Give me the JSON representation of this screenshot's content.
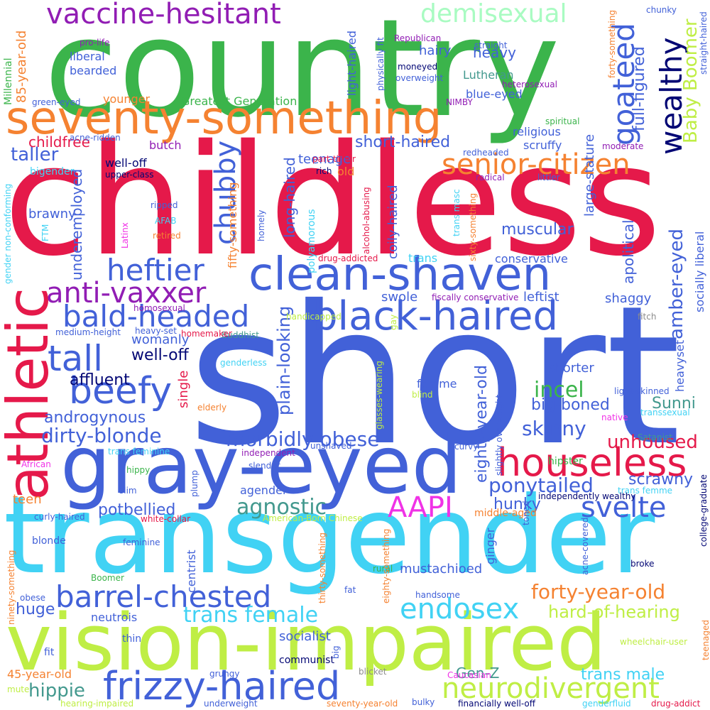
{
  "colors": {
    "red": "#e5194a",
    "green": "#3bb44b",
    "blue": "#4261d8",
    "cyan": "#41d2f4",
    "lime": "#bfee45",
    "orange": "#f58231",
    "purple": "#911db4",
    "navy": "#020674",
    "teal": "#43998e",
    "mint": "#a9fbc2",
    "magenta": "#f032e6",
    "grey": "#8c8c8c"
  },
  "words": [
    {
      "text": "short",
      "color": "blue"
    },
    {
      "text": "childless",
      "color": "red"
    },
    {
      "text": "country",
      "color": "green"
    },
    {
      "text": "transgender",
      "color": "cyan"
    },
    {
      "text": "vision-impaired",
      "color": "lime"
    },
    {
      "text": "gray-eyed",
      "color": "blue"
    },
    {
      "text": "seventy-something",
      "color": "orange"
    },
    {
      "text": "athletic",
      "color": "red"
    },
    {
      "text": "clean-shaven",
      "color": "blue"
    },
    {
      "text": "black-haired",
      "color": "blue"
    },
    {
      "text": "houseless",
      "color": "red"
    },
    {
      "text": "frizzy-haired",
      "color": "blue"
    },
    {
      "text": "barrel-chested",
      "color": "blue"
    },
    {
      "text": "vaccine-hesitant",
      "color": "purple"
    },
    {
      "text": "beefy",
      "color": "blue"
    },
    {
      "text": "tall",
      "color": "blue"
    },
    {
      "text": "heftier",
      "color": "blue"
    },
    {
      "text": "bald-headed",
      "color": "blue"
    },
    {
      "text": "anti-vaxxer",
      "color": "purple"
    },
    {
      "text": "neurodivergent",
      "color": "lime"
    },
    {
      "text": "senior-citizen",
      "color": "orange"
    },
    {
      "text": "endosex",
      "color": "cyan"
    },
    {
      "text": "svelte",
      "color": "blue"
    },
    {
      "text": "AAPI",
      "color": "magenta"
    },
    {
      "text": "goateed",
      "color": "blue"
    },
    {
      "text": "wealthy",
      "color": "navy"
    },
    {
      "text": "morbidly obese",
      "color": "blue"
    },
    {
      "text": "dirty-blonde",
      "color": "blue"
    },
    {
      "text": "demisexual",
      "color": "mint"
    },
    {
      "text": "chubby",
      "color": "blue"
    },
    {
      "text": "forty-year-old",
      "color": "orange"
    },
    {
      "text": "trans female",
      "color": "cyan"
    },
    {
      "text": "Baby Boomer",
      "color": "lime"
    },
    {
      "text": "amber-eyed",
      "color": "blue"
    },
    {
      "text": "agnostic",
      "color": "teal"
    },
    {
      "text": "incel",
      "color": "green"
    },
    {
      "text": "ponytailed",
      "color": "blue"
    },
    {
      "text": "skinny",
      "color": "blue"
    },
    {
      "text": "hippie",
      "color": "teal"
    },
    {
      "text": "unhoused",
      "color": "red"
    },
    {
      "text": "full-figured",
      "color": "blue"
    },
    {
      "text": "plain-looking",
      "color": "blue"
    },
    {
      "text": "eighty-year-old",
      "color": "blue"
    },
    {
      "text": "long-haired",
      "color": "blue"
    },
    {
      "text": "hard-of-hearing",
      "color": "lime"
    },
    {
      "text": "big-boned",
      "color": "blue"
    },
    {
      "text": "muscular",
      "color": "blue"
    },
    {
      "text": "well-off",
      "color": "navy"
    },
    {
      "text": "potbellied",
      "color": "blue"
    },
    {
      "text": "taller",
      "color": "blue"
    },
    {
      "text": "affluent",
      "color": "navy"
    },
    {
      "text": "androgynous",
      "color": "blue"
    },
    {
      "text": "apolitical",
      "color": "blue"
    },
    {
      "text": "short-haired",
      "color": "blue"
    },
    {
      "text": "underemployed",
      "color": "blue"
    },
    {
      "text": "scrawny",
      "color": "blue"
    },
    {
      "text": "hunky",
      "color": "blue"
    },
    {
      "text": "huge",
      "color": "blue"
    },
    {
      "text": "trans male",
      "color": "cyan"
    },
    {
      "text": "Gen-Z",
      "color": "teal"
    },
    {
      "text": "Sunni",
      "color": "teal"
    },
    {
      "text": "large-stature",
      "color": "blue"
    },
    {
      "text": "socially liberal",
      "color": "blue"
    },
    {
      "text": "heavyset",
      "color": "blue"
    },
    {
      "text": "shaggy",
      "color": "blue"
    },
    {
      "text": "shorter",
      "color": "blue"
    },
    {
      "text": "swole",
      "color": "blue"
    },
    {
      "text": "leftist",
      "color": "blue"
    },
    {
      "text": "teenage",
      "color": "blue"
    },
    {
      "text": "coily-haired",
      "color": "blue"
    },
    {
      "text": "fifty-something",
      "color": "orange"
    },
    {
      "text": "childfree",
      "color": "red"
    },
    {
      "text": "brawny",
      "color": "blue"
    },
    {
      "text": "single",
      "color": "red"
    },
    {
      "text": "womanly",
      "color": "blue"
    },
    {
      "text": "conservative",
      "color": "blue"
    },
    {
      "text": "mustachioed",
      "color": "blue"
    },
    {
      "text": "socialist",
      "color": "blue"
    },
    {
      "text": "Greatest Generation",
      "color": "green"
    },
    {
      "text": "blue-eyed",
      "color": "blue"
    },
    {
      "text": "hairy",
      "color": "blue"
    },
    {
      "text": "religious",
      "color": "blue"
    },
    {
      "text": "scruffy",
      "color": "blue"
    },
    {
      "text": "heavy",
      "color": "blue"
    },
    {
      "text": "Lutheran",
      "color": "teal"
    },
    {
      "text": "light-haired",
      "color": "blue"
    },
    {
      "text": "bearded",
      "color": "blue"
    },
    {
      "text": "liberal",
      "color": "blue"
    },
    {
      "text": "85-year-old",
      "color": "orange"
    },
    {
      "text": "younger",
      "color": "orange"
    },
    {
      "text": "butch",
      "color": "purple"
    },
    {
      "text": "teen",
      "color": "orange"
    },
    {
      "text": "agender",
      "color": "blue"
    },
    {
      "text": "neutrois",
      "color": "blue"
    },
    {
      "text": "ginger",
      "color": "blue"
    },
    {
      "text": "femme",
      "color": "blue"
    },
    {
      "text": "trans",
      "color": "cyan"
    },
    {
      "text": "old",
      "color": "orange"
    },
    {
      "text": "centrist",
      "color": "blue"
    },
    {
      "text": "Millennial",
      "color": "green"
    },
    {
      "text": "45-year-old",
      "color": "orange"
    },
    {
      "text": "fit",
      "color": "blue"
    },
    {
      "text": "thin",
      "color": "blue"
    },
    {
      "text": "communist",
      "color": "navy"
    },
    {
      "text": "bigender",
      "color": "cyan"
    },
    {
      "text": "polyamorous",
      "color": "cyan"
    },
    {
      "text": "well-off",
      "color": "navy"
    },
    {
      "text": "upper-class",
      "color": "navy"
    },
    {
      "text": "rich",
      "color": "navy"
    },
    {
      "text": "part-timer",
      "color": "red"
    },
    {
      "text": "drug-addicted",
      "color": "red"
    },
    {
      "text": "alcohol-abusing",
      "color": "red"
    },
    {
      "text": "sixty-something",
      "color": "orange"
    },
    {
      "text": "trans masc",
      "color": "cyan"
    },
    {
      "text": "radical",
      "color": "purple"
    },
    {
      "text": "littler",
      "color": "blue"
    },
    {
      "text": "redheaded",
      "color": "blue"
    },
    {
      "text": "moderate",
      "color": "purple"
    },
    {
      "text": "spiritual",
      "color": "green"
    },
    {
      "text": "NIMBY",
      "color": "purple"
    },
    {
      "text": "heterosexual",
      "color": "purple"
    },
    {
      "text": "overweight",
      "color": "blue"
    },
    {
      "text": "moneyed",
      "color": "navy"
    },
    {
      "text": "Republican",
      "color": "purple"
    },
    {
      "text": "pro-life",
      "color": "purple"
    },
    {
      "text": "physically fit",
      "color": "blue"
    },
    {
      "text": "straight",
      "color": "blue"
    },
    {
      "text": "forty-something",
      "color": "orange"
    },
    {
      "text": "chunky",
      "color": "blue"
    },
    {
      "text": "straight-haired",
      "color": "blue"
    },
    {
      "text": "green-eyed",
      "color": "blue"
    },
    {
      "text": "acne-ridden",
      "color": "blue"
    },
    {
      "text": "gender non-conforming",
      "color": "cyan"
    },
    {
      "text": "FTM",
      "color": "cyan"
    },
    {
      "text": "AFAB",
      "color": "cyan"
    },
    {
      "text": "Latinx",
      "color": "magenta"
    },
    {
      "text": "homely",
      "color": "blue"
    },
    {
      "text": "ripped",
      "color": "blue"
    },
    {
      "text": "retired",
      "color": "orange"
    },
    {
      "text": "medium-height",
      "color": "blue"
    },
    {
      "text": "heavy-set",
      "color": "blue"
    },
    {
      "text": "homosexual",
      "color": "purple"
    },
    {
      "text": "genderless",
      "color": "cyan"
    },
    {
      "text": "Buddhist",
      "color": "teal"
    },
    {
      "text": "homemaker",
      "color": "red"
    },
    {
      "text": "handicapped",
      "color": "lime"
    },
    {
      "text": "gay",
      "color": "lime"
    },
    {
      "text": "fiscally conservative",
      "color": "purple"
    },
    {
      "text": "fitch",
      "color": "grey"
    },
    {
      "text": "light-skinned",
      "color": "blue"
    },
    {
      "text": "transsexual",
      "color": "cyan"
    },
    {
      "text": "native",
      "color": "magenta"
    },
    {
      "text": "glasses-wearing",
      "color": "lime"
    },
    {
      "text": "blind",
      "color": "lime"
    },
    {
      "text": "slightly overweight",
      "color": "blue"
    },
    {
      "text": "elderly",
      "color": "orange"
    },
    {
      "text": "unshaved",
      "color": "blue"
    },
    {
      "text": "independent",
      "color": "purple"
    },
    {
      "text": "African",
      "color": "magenta"
    },
    {
      "text": "slender",
      "color": "blue"
    },
    {
      "text": "curvy",
      "color": "blue"
    },
    {
      "text": "hipster",
      "color": "green"
    },
    {
      "text": "Satanist",
      "color": "teal"
    },
    {
      "text": "trans feminine",
      "color": "cyan"
    },
    {
      "text": "hippy",
      "color": "green"
    },
    {
      "text": "plump",
      "color": "blue"
    },
    {
      "text": "slim",
      "color": "blue"
    },
    {
      "text": "trans femme",
      "color": "cyan"
    },
    {
      "text": "independently wealthy",
      "color": "navy"
    },
    {
      "text": "middle-aged",
      "color": "orange"
    },
    {
      "text": "toned",
      "color": "blue"
    },
    {
      "text": "college-graduate",
      "color": "navy"
    },
    {
      "text": "curly-haired",
      "color": "blue"
    },
    {
      "text": "white-collar",
      "color": "red"
    },
    {
      "text": "American-Born Chinese",
      "color": "lime"
    },
    {
      "text": "feminine",
      "color": "blue"
    },
    {
      "text": "blonde",
      "color": "blue"
    },
    {
      "text": "acne-covered",
      "color": "blue"
    },
    {
      "text": "rural",
      "color": "green"
    },
    {
      "text": "ninety-something",
      "color": "orange"
    },
    {
      "text": "Boomer",
      "color": "green"
    },
    {
      "text": "thirty-something",
      "color": "orange"
    },
    {
      "text": "eighty-something",
      "color": "orange"
    },
    {
      "text": "broke",
      "color": "navy"
    },
    {
      "text": "handsome",
      "color": "blue"
    },
    {
      "text": "obese",
      "color": "blue"
    },
    {
      "text": "fat",
      "color": "blue"
    },
    {
      "text": "wheelchair-user",
      "color": "lime"
    },
    {
      "text": "big",
      "color": "blue"
    },
    {
      "text": "grungy",
      "color": "blue"
    },
    {
      "text": "blicket",
      "color": "grey"
    },
    {
      "text": "Caucasian",
      "color": "magenta"
    },
    {
      "text": "teenaged",
      "color": "orange"
    },
    {
      "text": "mute",
      "color": "lime"
    },
    {
      "text": "hearing-impaired",
      "color": "lime"
    },
    {
      "text": "underweight",
      "color": "blue"
    },
    {
      "text": "seventy-year-old",
      "color": "orange"
    },
    {
      "text": "bulky",
      "color": "blue"
    },
    {
      "text": "financially well-off",
      "color": "navy"
    },
    {
      "text": "genderfluid",
      "color": "cyan"
    },
    {
      "text": "drug-addict",
      "color": "red"
    }
  ]
}
